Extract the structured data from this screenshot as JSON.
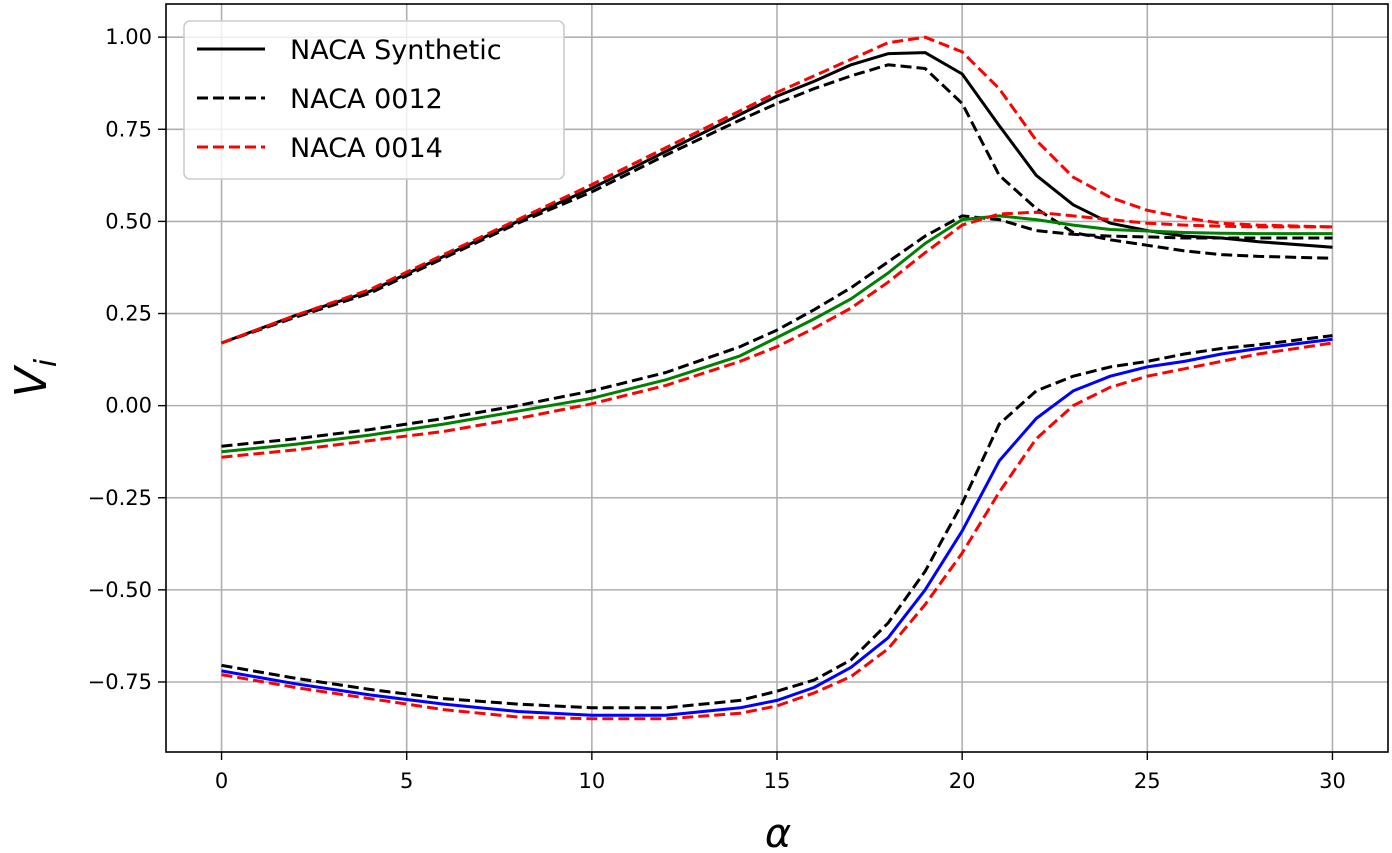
{
  "chart_data": {
    "type": "line",
    "title": "",
    "xlabel": "α",
    "ylabel": "V",
    "ylabel_subscript": "i",
    "xlim": [
      -1.5,
      31.5
    ],
    "ylim": [
      -0.94,
      1.09
    ],
    "grid": true,
    "legend_position": "top-left",
    "x_ticks": [
      0,
      5,
      10,
      15,
      20,
      25,
      30
    ],
    "x_tick_labels": [
      "0",
      "5",
      "10",
      "15",
      "20",
      "25",
      "30"
    ],
    "y_ticks": [
      1.0,
      0.75,
      0.5,
      0.25,
      0.0,
      -0.25,
      -0.5,
      -0.75
    ],
    "y_tick_labels": [
      "1.00",
      "0.75",
      "0.50",
      "0.25",
      "0.00",
      "−0.25",
      "−0.50",
      "−0.75"
    ],
    "x": [
      0,
      2,
      4,
      6,
      8,
      10,
      12,
      14,
      15,
      16,
      17,
      18,
      19,
      20,
      21,
      22,
      23,
      24,
      25,
      26,
      27,
      28,
      30
    ],
    "legend": [
      {
        "label": "NACA Synthetic",
        "color": "#000000",
        "dash": "solid"
      },
      {
        "label": "NACA 0012",
        "color": "#000000",
        "dash": "dashed"
      },
      {
        "label": "NACA 0014",
        "color": "#ff0000",
        "dash": "dashed"
      }
    ],
    "series": [
      {
        "name": "NACA Synthetic (top)",
        "color": "#000000",
        "dash": "solid",
        "values": [
          0.17,
          0.245,
          0.31,
          0.405,
          0.5,
          0.59,
          0.69,
          0.79,
          0.84,
          0.88,
          0.925,
          0.955,
          0.958,
          0.9,
          0.76,
          0.625,
          0.545,
          0.495,
          0.475,
          0.46,
          0.455,
          0.445,
          0.43
        ]
      },
      {
        "name": "NACA 0012 (top)",
        "color": "#000000",
        "dash": "dashed",
        "values": [
          0.17,
          0.24,
          0.305,
          0.4,
          0.495,
          0.58,
          0.68,
          0.775,
          0.82,
          0.86,
          0.895,
          0.925,
          0.915,
          0.82,
          0.625,
          0.535,
          0.47,
          0.45,
          0.435,
          0.42,
          0.41,
          0.405,
          0.4
        ]
      },
      {
        "name": "NACA 0014 (top)",
        "color": "#ff0000",
        "dash": "dashed",
        "values": [
          0.17,
          0.245,
          0.315,
          0.41,
          0.505,
          0.6,
          0.7,
          0.8,
          0.85,
          0.895,
          0.94,
          0.985,
          1.0,
          0.96,
          0.86,
          0.72,
          0.62,
          0.565,
          0.53,
          0.51,
          0.495,
          0.49,
          0.485
        ]
      },
      {
        "name": "NACA 0012 (middle)",
        "color": "#000000",
        "dash": "dashed",
        "values": [
          -0.11,
          -0.09,
          -0.065,
          -0.035,
          0.0,
          0.04,
          0.09,
          0.16,
          0.205,
          0.26,
          0.32,
          0.39,
          0.46,
          0.515,
          0.505,
          0.475,
          0.465,
          0.46,
          0.458,
          0.455,
          0.455,
          0.455,
          0.455
        ]
      },
      {
        "name": "NACA Synthetic (middle)",
        "color": "#008000",
        "dash": "solid",
        "values": [
          -0.125,
          -0.105,
          -0.08,
          -0.05,
          -0.015,
          0.02,
          0.07,
          0.135,
          0.185,
          0.235,
          0.29,
          0.36,
          0.44,
          0.505,
          0.515,
          0.505,
          0.49,
          0.478,
          0.474,
          0.47,
          0.468,
          0.467,
          0.467
        ]
      },
      {
        "name": "NACA 0014 (middle)",
        "color": "#ff0000",
        "dash": "dashed",
        "values": [
          -0.14,
          -0.12,
          -0.095,
          -0.07,
          -0.035,
          0.005,
          0.055,
          0.12,
          0.16,
          0.21,
          0.265,
          0.335,
          0.415,
          0.49,
          0.52,
          0.525,
          0.515,
          0.505,
          0.495,
          0.49,
          0.487,
          0.485,
          0.485
        ]
      },
      {
        "name": "NACA 0012 (bottom)",
        "color": "#000000",
        "dash": "dashed",
        "values": [
          -0.705,
          -0.74,
          -0.77,
          -0.795,
          -0.81,
          -0.82,
          -0.82,
          -0.8,
          -0.775,
          -0.745,
          -0.69,
          -0.59,
          -0.45,
          -0.265,
          -0.05,
          0.04,
          0.08,
          0.105,
          0.12,
          0.14,
          0.155,
          0.165,
          0.19
        ]
      },
      {
        "name": "NACA Synthetic (bottom)",
        "color": "#0000ff",
        "dash": "solid",
        "values": [
          -0.72,
          -0.755,
          -0.785,
          -0.81,
          -0.83,
          -0.84,
          -0.84,
          -0.82,
          -0.8,
          -0.765,
          -0.71,
          -0.63,
          -0.5,
          -0.34,
          -0.15,
          -0.035,
          0.04,
          0.08,
          0.105,
          0.12,
          0.14,
          0.155,
          0.18
        ]
      },
      {
        "name": "NACA 0014 (bottom)",
        "color": "#ff0000",
        "dash": "dashed",
        "values": [
          -0.73,
          -0.765,
          -0.795,
          -0.825,
          -0.845,
          -0.85,
          -0.85,
          -0.835,
          -0.815,
          -0.78,
          -0.735,
          -0.66,
          -0.54,
          -0.4,
          -0.235,
          -0.09,
          0.0,
          0.05,
          0.08,
          0.1,
          0.12,
          0.14,
          0.17
        ]
      }
    ]
  }
}
